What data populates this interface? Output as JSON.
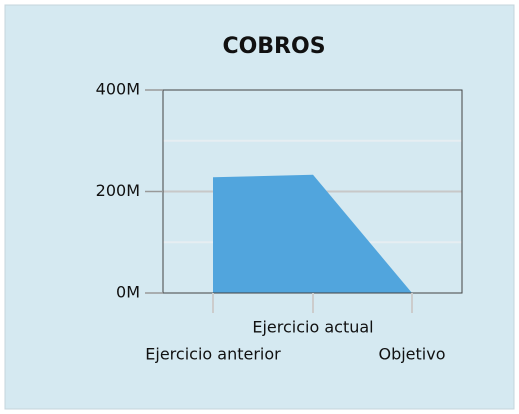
{
  "chart_data": {
    "type": "area",
    "title": "COBROS",
    "categories": [
      "Ejercicio anterior",
      "Ejercicio actual",
      "Objetivo"
    ],
    "values": [
      228,
      233,
      0
    ],
    "color": "#51a5dd",
    "ylim": [
      0,
      400
    ],
    "yticks": [
      {
        "value": 0,
        "label": "0M"
      },
      {
        "value": 200,
        "label": "200M"
      },
      {
        "value": 400,
        "label": "400M"
      }
    ],
    "minor_yticks": [
      100,
      300
    ],
    "grid": true
  }
}
